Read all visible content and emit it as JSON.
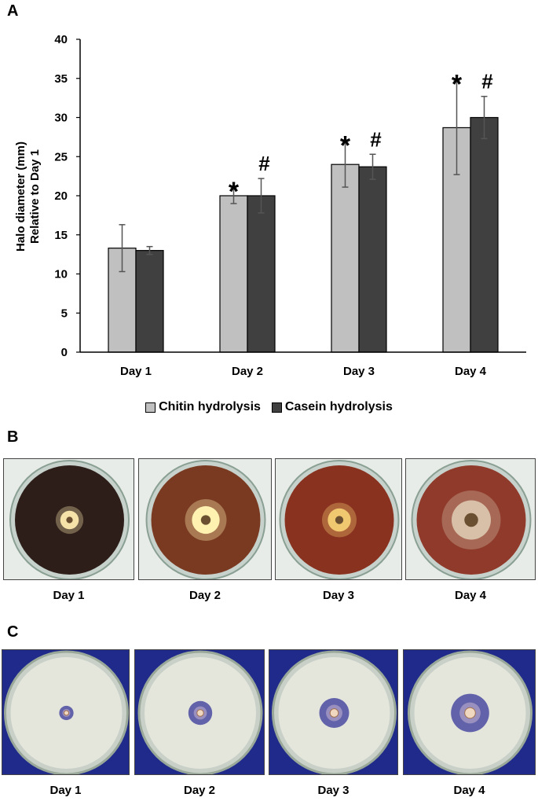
{
  "panels": {
    "a": "A",
    "b": "B",
    "c": "C"
  },
  "chart_data": {
    "type": "bar",
    "categories": [
      "Day 1",
      "Day 2",
      "Day 3",
      "Day 4"
    ],
    "series": [
      {
        "name": "Chitin hydrolysis",
        "color": "#c0c0c0",
        "values": [
          13.3,
          20.0,
          24.0,
          28.7
        ],
        "errors": [
          3.0,
          1.0,
          2.9,
          6.0
        ]
      },
      {
        "name": "Casein hydrolysis",
        "color": "#404040",
        "values": [
          13.0,
          20.0,
          23.7,
          30.0
        ],
        "errors": [
          0.5,
          2.2,
          1.6,
          2.7
        ]
      }
    ],
    "annotations": [
      {
        "category": "Day 2",
        "series": "Chitin hydrolysis",
        "text": "*"
      },
      {
        "category": "Day 2",
        "series": "Casein hydrolysis",
        "text": "#"
      },
      {
        "category": "Day 3",
        "series": "Chitin hydrolysis",
        "text": "*"
      },
      {
        "category": "Day 3",
        "series": "Casein hydrolysis",
        "text": "#"
      },
      {
        "category": "Day 4",
        "series": "Chitin hydrolysis",
        "text": "*"
      },
      {
        "category": "Day 4",
        "series": "Casein hydrolysis",
        "text": "#"
      }
    ],
    "ylabel": [
      "Halo diameter (mm)",
      "Relative to Day 1"
    ],
    "ylim": [
      0,
      40
    ],
    "yticks": [
      0,
      5,
      10,
      15,
      20,
      25,
      30,
      35,
      40
    ],
    "grid": false,
    "legend_position": "bottom"
  },
  "plates_b": {
    "labels": [
      "Day 1",
      "Day 2",
      "Day 3",
      "Day 4"
    ],
    "medium_colors": [
      "#2e1e1a",
      "#7a3a22",
      "#8a3220",
      "#8f3a2a"
    ],
    "halo_colors": [
      "#f4e2a8",
      "#fff2b0",
      "#f0c870",
      "#d8c0a8"
    ],
    "halo_levels": [
      0.16,
      0.24,
      0.2,
      0.34
    ]
  },
  "plates_c": {
    "labels": [
      "Day 1",
      "Day 2",
      "Day 3",
      "Day 4"
    ],
    "background_color": "#1f2a8a",
    "medium_color": "#e4e6dc",
    "zone_color": "#4a4aa0",
    "zone_levels": [
      0.12,
      0.2,
      0.25,
      0.32
    ]
  }
}
